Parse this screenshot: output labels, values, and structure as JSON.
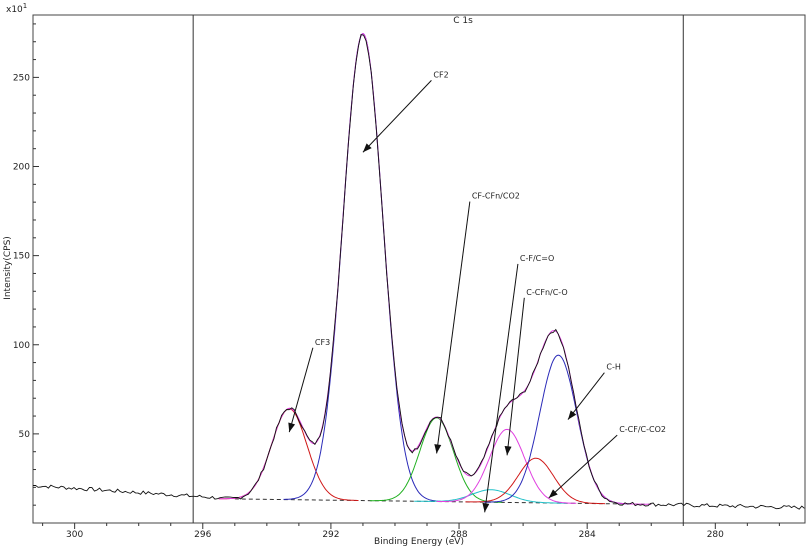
{
  "chart_data": {
    "type": "line",
    "title": "C 1s",
    "exponent_label": "x10",
    "exponent_power": "1",
    "xlabel": "Binding Energy (eV)",
    "ylabel": "Intensity(CPS)",
    "x_reversed": true,
    "xlim": [
      301.3,
      277.2
    ],
    "ylim": [
      0,
      285
    ],
    "x_ticks": [
      300,
      296,
      292,
      288,
      284,
      280
    ],
    "x_tick_labels": [
      "300",
      "296",
      "292",
      "288",
      "284",
      "280"
    ],
    "y_ticks": [
      50,
      100,
      150,
      200,
      250
    ],
    "y_tick_labels": [
      "50",
      "100",
      "150",
      "200",
      "250"
    ],
    "region_bounds": [
      296.3,
      281.0
    ],
    "baseline": {
      "start": [
        295.0,
        13.5
      ],
      "end": [
        282.0,
        10.5
      ]
    },
    "components": [
      {
        "name": "CF3",
        "center": 293.3,
        "height": 51,
        "sigma": 0.55,
        "color": "#d01818"
      },
      {
        "name": "CF2",
        "center": 291.0,
        "height": 262,
        "sigma": 0.62,
        "color": "#2a2ab8"
      },
      {
        "name": "CF-CFn/CO2",
        "center": 288.7,
        "height": 47,
        "sigma": 0.52,
        "color": "#20b020"
      },
      {
        "name": "C-F/C=O",
        "center": 287.0,
        "height": 7,
        "sigma": 0.6,
        "color": "#20c0c8"
      },
      {
        "name": "C-CFn/C-O",
        "center": 286.5,
        "height": 41,
        "sigma": 0.55,
        "color": "#e040e0"
      },
      {
        "name": "C-CF/C-CO2",
        "center": 285.6,
        "height": 25,
        "sigma": 0.55,
        "color": "#d01818"
      },
      {
        "name": "C-H",
        "center": 284.9,
        "height": 83,
        "sigma": 0.58,
        "color": "#2a2ab8"
      }
    ],
    "annotations": [
      {
        "text": "CF3",
        "tip": [
          293.3,
          51
        ],
        "label_at": [
          292.5,
          100
        ]
      },
      {
        "text": "CF2",
        "tip": [
          291.0,
          208
        ],
        "label_at": [
          288.8,
          250
        ]
      },
      {
        "text": "CF-CFn/CO2",
        "tip": [
          288.7,
          39
        ],
        "label_at": [
          287.6,
          182
        ]
      },
      {
        "text": "C-F/C=O",
        "tip": [
          287.2,
          6
        ],
        "label_at": [
          286.1,
          147
        ]
      },
      {
        "text": "C-CFn/C-O",
        "tip": [
          286.5,
          38
        ],
        "label_at": [
          285.9,
          128
        ]
      },
      {
        "text": "C-H",
        "tip": [
          284.6,
          58
        ],
        "label_at": [
          283.4,
          86
        ]
      },
      {
        "text": "C-CF/C-CO2",
        "tip": [
          285.2,
          14
        ],
        "label_at": [
          283.0,
          51
        ]
      }
    ],
    "grid": false,
    "legend": "none"
  }
}
